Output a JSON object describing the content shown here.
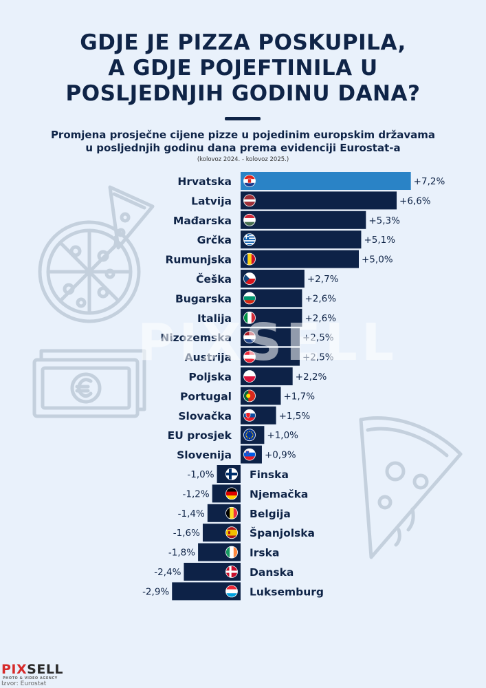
{
  "title_lines": [
    "GDJE JE PIZZA POSKUPILA,",
    "A GDJE POJEFTINILA U",
    "POSLJEDNJIH GODINU DANA?"
  ],
  "subtitle_lines": [
    "Promjena prosječne cijene pizze u pojedinim europskim državama",
    "u posljednjih godinu dana prema evidenciji Eurostat-a"
  ],
  "note": "(kolovoz 2024. - kolovoz 2025.)",
  "watermark": "PIXSELL",
  "brand": {
    "part1": "PIX",
    "part2": "SELL",
    "tagline": "PHOTO & VIDEO AGENCY"
  },
  "source": "Izvor: Eurostat",
  "colors": {
    "bar": "#0d2247",
    "highlight": "#2a83c6",
    "background": "#e9f1fb",
    "decor": "#c4d0dd"
  },
  "chart_data": {
    "type": "bar",
    "orientation": "horizontal",
    "unit": "%",
    "categories": [
      "Hrvatska",
      "Latvija",
      "Mađarska",
      "Grčka",
      "Rumunjska",
      "Češka",
      "Bugarska",
      "Italija",
      "Nizozemska",
      "Austrija",
      "Poljska",
      "Portugal",
      "Slovačka",
      "EU prosjek",
      "Slovenija",
      "Finska",
      "Njemačka",
      "Belgija",
      "Španjolska",
      "Irska",
      "Danska",
      "Luksemburg"
    ],
    "values": [
      7.2,
      6.6,
      5.3,
      5.1,
      5.0,
      2.7,
      2.6,
      2.6,
      2.5,
      2.5,
      2.2,
      1.7,
      1.5,
      1.0,
      0.9,
      -1.0,
      -1.2,
      -1.4,
      -1.6,
      -1.8,
      -2.4,
      -2.9
    ],
    "labels": [
      "+7,2%",
      "+6,6%",
      "+5,3%",
      "+5,1%",
      "+5,0%",
      "+2,7%",
      "+2,6%",
      "+2,6%",
      "+2,5%",
      "+2,5%",
      "+2,2%",
      "+1,7%",
      "+1,5%",
      "+1,0%",
      "+0,9%",
      "-1,0%",
      "-1,2%",
      "-1,4%",
      "-1,6%",
      "-1,8%",
      "-2,4%",
      "-2,9%"
    ],
    "flags": [
      "croatia-flag",
      "latvia-flag",
      "hungary-flag",
      "greece-flag",
      "romania-flag",
      "czechia-flag",
      "bulgaria-flag",
      "italy-flag",
      "netherlands-flag",
      "austria-flag",
      "poland-flag",
      "portugal-flag",
      "slovakia-flag",
      "eu-flag",
      "slovenia-flag",
      "finland-flag",
      "germany-flag",
      "belgium-flag",
      "spain-flag",
      "ireland-flag",
      "denmark-flag",
      "luxembourg-flag"
    ],
    "highlighted": "Hrvatska",
    "grid": false
  }
}
